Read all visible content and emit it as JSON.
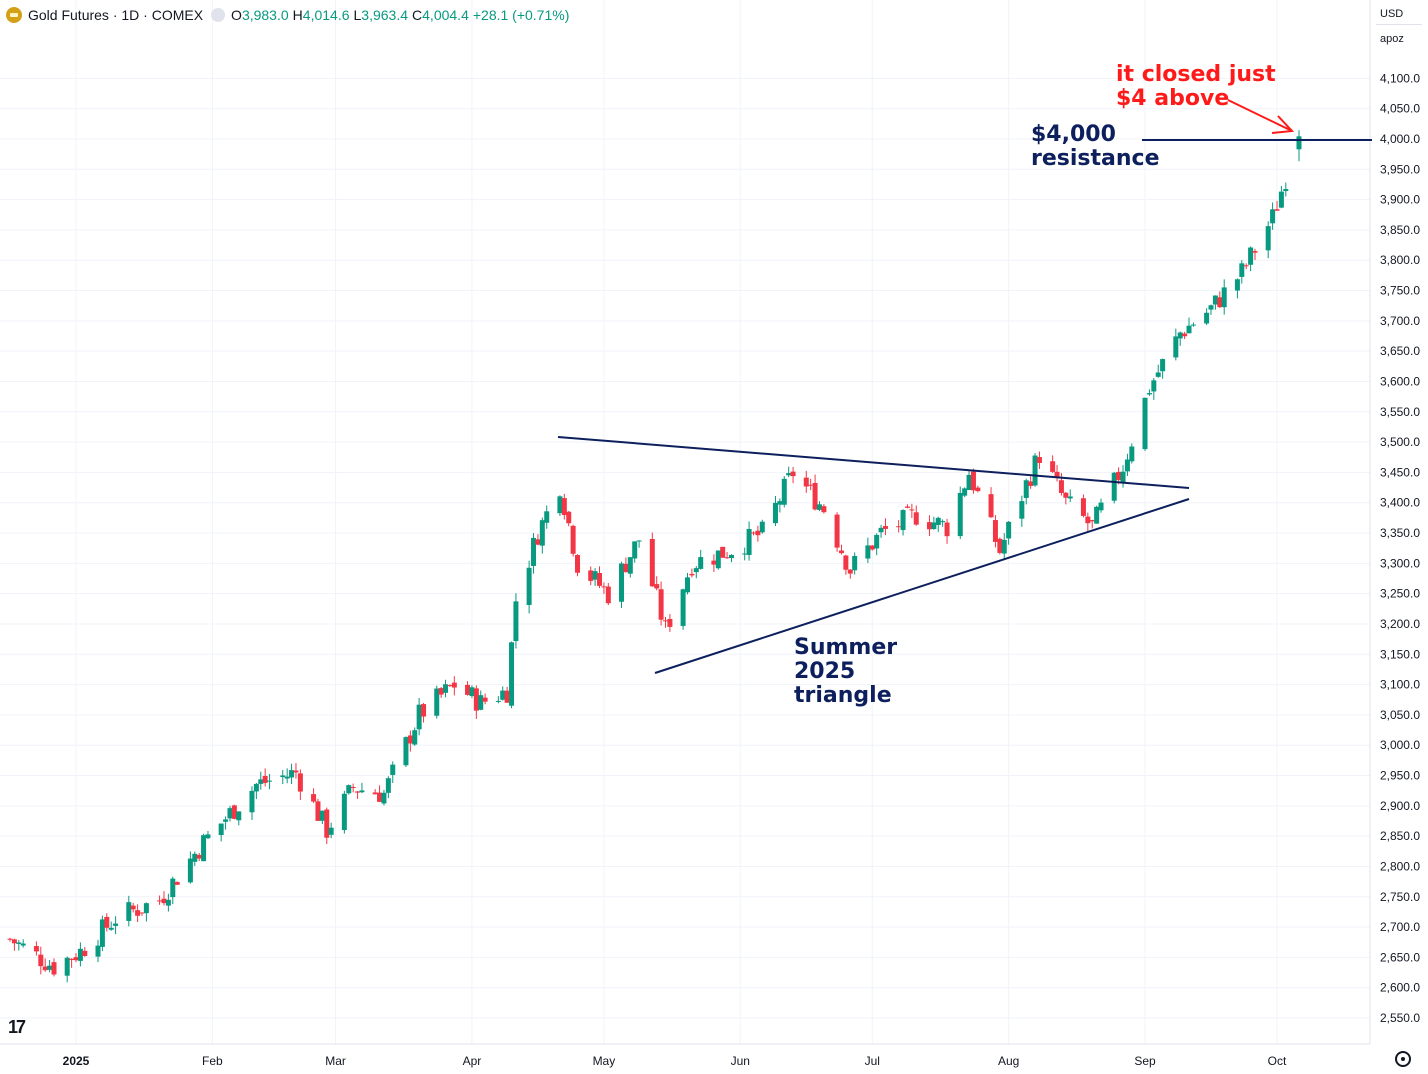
{
  "header": {
    "symbol_title": "Gold Futures · 1D · COMEX",
    "open_label": "O",
    "open_value": "3,983.0",
    "high_label": "H",
    "high_value": "4,014.6",
    "low_label": "L",
    "low_value": "3,963.4",
    "close_label": "C",
    "close_value": "4,004.4",
    "change": "+28.1 (+0.71%)"
  },
  "controls": {
    "currency": "USD",
    "scale": "apoz"
  },
  "colors": {
    "up": "#089981",
    "down": "#f23645",
    "annotation_navy": "#0d1f5c",
    "annotation_red": "#ff1a1a",
    "grid": "#f0f3fa"
  },
  "chart_data": {
    "type": "candlestick",
    "x_range": [
      "2024-12-17",
      "2025-10-06"
    ],
    "ylim": [
      2530,
      4130
    ],
    "y_ticks": [
      "4,100.0",
      "4,050.0",
      "4,000.0",
      "3,950.0",
      "3,900.0",
      "3,850.0",
      "3,800.0",
      "3,750.0",
      "3,700.0",
      "3,650.0",
      "3,600.0",
      "3,550.0",
      "3,500.0",
      "3,450.0",
      "3,400.0",
      "3,350.0",
      "3,300.0",
      "3,250.0",
      "3,200.0",
      "3,150.0",
      "3,100.0",
      "3,050.0",
      "3,000.0",
      "2,950.0",
      "2,900.0",
      "2,850.0",
      "2,800.0",
      "2,750.0",
      "2,700.0",
      "2,650.0",
      "2,600.0",
      "2,550.0"
    ],
    "x_ticks": [
      "2025",
      "Feb",
      "Mar",
      "Apr",
      "May",
      "Jun",
      "Jul",
      "Aug",
      "Sep",
      "Oct"
    ],
    "close_series": [
      [
        "2024-12-17",
        2680
      ],
      [
        "2024-12-27",
        2635
      ],
      [
        "2025-01-02",
        2660
      ],
      [
        "2025-01-10",
        2715
      ],
      [
        "2025-01-20",
        2745
      ],
      [
        "2025-01-30",
        2840
      ],
      [
        "2025-02-11",
        2935
      ],
      [
        "2025-02-20",
        2955
      ],
      [
        "2025-02-27",
        2860
      ],
      [
        "2025-03-05",
        2930
      ],
      [
        "2025-03-12",
        2920
      ],
      [
        "2025-03-20",
        3050
      ],
      [
        "2025-03-28",
        3100
      ],
      [
        "2025-04-03",
        3070
      ],
      [
        "2025-04-09",
        3090
      ],
      [
        "2025-04-11",
        3240
      ],
      [
        "2025-04-16",
        3350
      ],
      [
        "2025-04-21",
        3430
      ],
      [
        "2025-04-25",
        3300
      ],
      [
        "2025-05-02",
        3250
      ],
      [
        "2025-05-09",
        3340
      ],
      [
        "2025-05-15",
        3190
      ],
      [
        "2025-05-21",
        3300
      ],
      [
        "2025-05-29",
        3320
      ],
      [
        "2025-06-06",
        3350
      ],
      [
        "2025-06-13",
        3450
      ],
      [
        "2025-06-20",
        3390
      ],
      [
        "2025-06-26",
        3290
      ],
      [
        "2025-07-03",
        3350
      ],
      [
        "2025-07-11",
        3380
      ],
      [
        "2025-07-18",
        3360
      ],
      [
        "2025-07-23",
        3450
      ],
      [
        "2025-07-30",
        3320
      ],
      [
        "2025-08-05",
        3430
      ],
      [
        "2025-08-08",
        3480
      ],
      [
        "2025-08-14",
        3400
      ],
      [
        "2025-08-20",
        3360
      ],
      [
        "2025-08-27",
        3460
      ],
      [
        "2025-09-02",
        3590
      ],
      [
        "2025-09-09",
        3680
      ],
      [
        "2025-09-16",
        3720
      ],
      [
        "2025-09-23",
        3780
      ],
      [
        "2025-09-30",
        3870
      ],
      [
        "2025-10-06",
        4004.4
      ]
    ],
    "annotations": {
      "resistance_text_1": "$4,000",
      "resistance_text_2": "resistance",
      "callout_line1": "it closed just",
      "callout_line2": "$4 above",
      "triangle_line1": "Summer",
      "triangle_line2": "2025",
      "triangle_line3": "triangle"
    }
  }
}
